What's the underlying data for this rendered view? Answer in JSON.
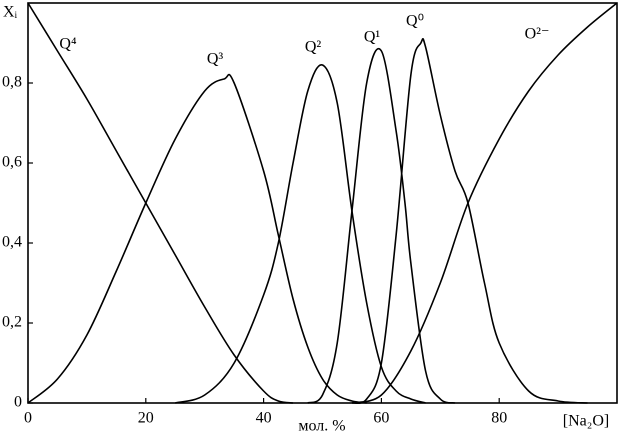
{
  "chart_data": {
    "type": "line",
    "xlabel": "мол. %",
    "xunit_label": "[Na₂O]",
    "ylabel": "Xᵢ",
    "xlim": [
      0,
      100
    ],
    "ylim": [
      0,
      1
    ],
    "xticks": [
      0,
      20,
      40,
      60,
      80
    ],
    "yticks": [
      {
        "value": 0,
        "label": "0"
      },
      {
        "value": 0.2,
        "label": "0,2"
      },
      {
        "value": 0.4,
        "label": "0,4"
      },
      {
        "value": 0.6,
        "label": "0,6"
      },
      {
        "value": 0.8,
        "label": "0,8"
      }
    ],
    "series": [
      {
        "name": "Q⁴",
        "color": "#000000",
        "x": [
          0,
          5,
          10,
          15,
          20,
          25,
          30,
          35,
          40,
          42.5,
          45
        ],
        "values": [
          1.0,
          0.88,
          0.76,
          0.63,
          0.5,
          0.37,
          0.24,
          0.12,
          0.03,
          0.005,
          0
        ]
      },
      {
        "name": "Q³",
        "color": "#000000",
        "x": [
          0,
          5,
          10,
          15,
          20,
          25,
          30,
          33.3,
          35,
          40,
          42.5,
          45,
          47.5,
          50,
          52.5,
          55,
          57.5
        ],
        "values": [
          0,
          0.06,
          0.17,
          0.33,
          0.5,
          0.66,
          0.78,
          0.81,
          0.8,
          0.58,
          0.42,
          0.26,
          0.14,
          0.06,
          0.02,
          0.005,
          0
        ]
      },
      {
        "name": "Q²",
        "color": "#000000",
        "x": [
          25,
          30,
          35,
          40,
          42.5,
          45,
          47.5,
          50,
          52.5,
          55,
          57.5,
          60,
          62.5,
          65,
          67.5
        ],
        "values": [
          0,
          0.02,
          0.1,
          0.27,
          0.4,
          0.6,
          0.78,
          0.845,
          0.75,
          0.48,
          0.25,
          0.09,
          0.03,
          0.01,
          0
        ]
      },
      {
        "name": "Q¹",
        "color": "#000000",
        "x": [
          47.5,
          50,
          52.5,
          55,
          57.5,
          60,
          62.5,
          64,
          65,
          67.5,
          70,
          72.5
        ],
        "values": [
          0,
          0.02,
          0.15,
          0.48,
          0.8,
          0.88,
          0.68,
          0.5,
          0.35,
          0.08,
          0.01,
          0
        ]
      },
      {
        "name": "Q⁰",
        "color": "#000000",
        "x": [
          55,
          57.5,
          60,
          62.5,
          65,
          66.7,
          67.5,
          70,
          72.5,
          74.7,
          77.5,
          80,
          85,
          90,
          95
        ],
        "values": [
          0,
          0.01,
          0.1,
          0.42,
          0.82,
          0.9,
          0.89,
          0.72,
          0.58,
          0.5,
          0.3,
          0.15,
          0.03,
          0.005,
          0
        ]
      },
      {
        "name": "O²⁻",
        "color": "#000000",
        "x": [
          55,
          60,
          65,
          70,
          74.7,
          80,
          85,
          90,
          95,
          100
        ],
        "values": [
          0,
          0.02,
          0.13,
          0.3,
          0.5,
          0.66,
          0.78,
          0.87,
          0.94,
          1.0
        ]
      }
    ]
  }
}
